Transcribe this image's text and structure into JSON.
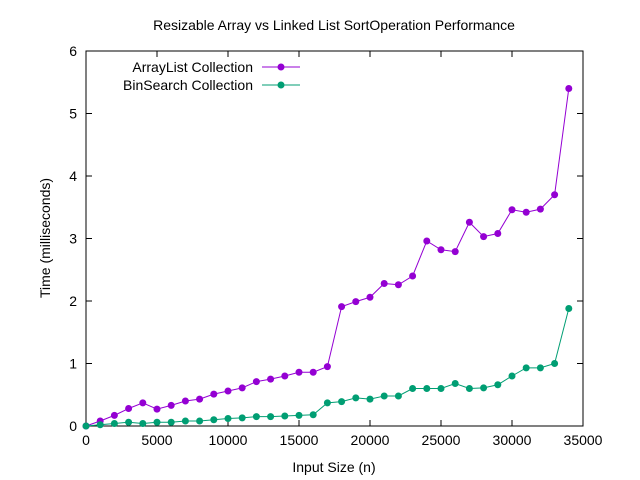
{
  "chart_data": {
    "type": "line",
    "title": "Resizable Array vs Linked List SortOperation Performance",
    "xlabel": "Input Size (n)",
    "ylabel": "Time (milliseconds)",
    "xlim": [
      0,
      35000
    ],
    "ylim": [
      0,
      6
    ],
    "xticks": [
      "0",
      "5000",
      "10000",
      "15000",
      "20000",
      "25000",
      "30000",
      "35000"
    ],
    "yticks": [
      "0",
      "1",
      "2",
      "3",
      "4",
      "5",
      "6"
    ],
    "grid": false,
    "legend_position": "top-left",
    "x": [
      0,
      1000,
      2000,
      3000,
      4000,
      5000,
      6000,
      7000,
      8000,
      9000,
      10000,
      11000,
      12000,
      13000,
      14000,
      15000,
      16000,
      17000,
      18000,
      19000,
      20000,
      21000,
      22000,
      23000,
      24000,
      25000,
      26000,
      27000,
      28000,
      29000,
      30000,
      31000,
      32000,
      33000,
      34000
    ],
    "series": [
      {
        "name": "ArrayList Collection",
        "color": "#9400d3",
        "values": [
          0.0,
          0.08,
          0.17,
          0.28,
          0.37,
          0.27,
          0.33,
          0.4,
          0.43,
          0.51,
          0.56,
          0.61,
          0.71,
          0.75,
          0.8,
          0.86,
          0.86,
          0.95,
          1.91,
          1.99,
          2.06,
          2.28,
          2.26,
          2.4,
          2.96,
          2.82,
          2.79,
          3.26,
          3.03,
          3.08,
          3.46,
          3.42,
          3.47,
          3.7,
          5.4
        ]
      },
      {
        "name": "BinSearch Collection",
        "color": "#009e73",
        "values": [
          0.0,
          0.02,
          0.04,
          0.06,
          0.04,
          0.06,
          0.06,
          0.08,
          0.08,
          0.1,
          0.12,
          0.13,
          0.15,
          0.15,
          0.16,
          0.17,
          0.18,
          0.37,
          0.39,
          0.45,
          0.43,
          0.48,
          0.48,
          0.6,
          0.6,
          0.6,
          0.68,
          0.6,
          0.61,
          0.66,
          0.8,
          0.93,
          0.93,
          1.0,
          1.88
        ]
      }
    ]
  }
}
